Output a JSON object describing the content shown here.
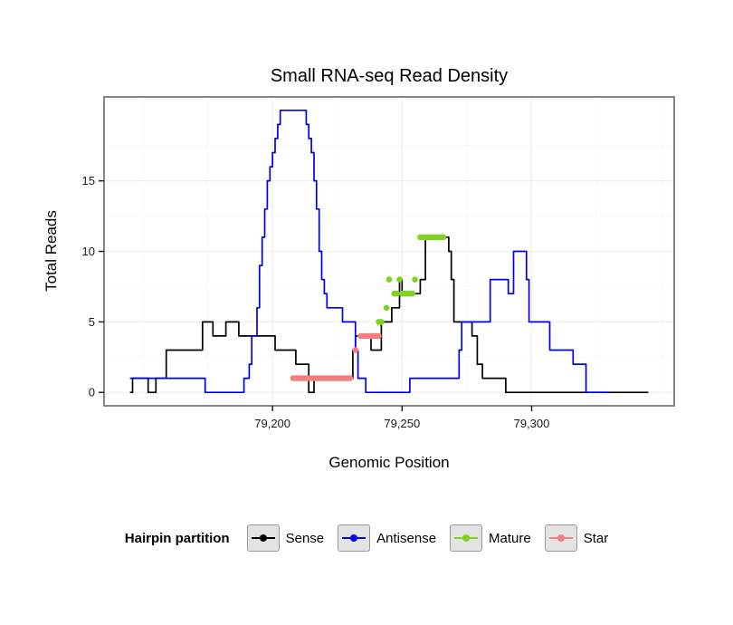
{
  "title": "Small RNA-seq Read Density",
  "axes": {
    "x_label": "Genomic Position",
    "y_label": "Total Reads"
  },
  "legend": {
    "title": "Hairpin partition",
    "items": [
      {
        "label": "Sense",
        "color": "#000000"
      },
      {
        "label": "Antisense",
        "color": "#0000EE"
      },
      {
        "label": "Mature",
        "color": "#7ED321"
      },
      {
        "label": "Star",
        "color": "#F08080"
      }
    ]
  },
  "chart_data": {
    "type": "line",
    "title": "Small RNA-seq Read Density",
    "xlabel": "Genomic Position",
    "ylabel": "Total Reads",
    "xlim": [
      79135,
      79355
    ],
    "ylim": [
      -0.95,
      20.95
    ],
    "grid": true,
    "legend_position": "bottom",
    "panel_bg": "#FFFFFF",
    "grid_major_color": "#EFEFEF",
    "grid_minor_color": "#F7F7F7",
    "x_ticks": [
      {
        "value": 79200,
        "label": "79,200"
      },
      {
        "value": 79250,
        "label": "79,250"
      },
      {
        "value": 79300,
        "label": "79,300"
      }
    ],
    "y_ticks": [
      {
        "value": 0,
        "label": "0"
      },
      {
        "value": 5,
        "label": "5"
      },
      {
        "value": 10,
        "label": "10"
      },
      {
        "value": 15,
        "label": "15"
      }
    ],
    "x_minor": [
      79150,
      79175,
      79225,
      79275,
      79325,
      79350
    ],
    "y_minor": [
      2.5,
      7.5,
      12.5,
      17.5
    ],
    "series": [
      {
        "name": "Sense",
        "color": "#000000",
        "style": "step",
        "points": [
          [
            79145,
            0
          ],
          [
            79146,
            1
          ],
          [
            79151,
            1
          ],
          [
            79152,
            0
          ],
          [
            79154,
            0
          ],
          [
            79155,
            1
          ],
          [
            79158,
            1
          ],
          [
            79159,
            3
          ],
          [
            79172,
            3
          ],
          [
            79173,
            5
          ],
          [
            79176,
            5
          ],
          [
            79177,
            4
          ],
          [
            79181,
            4
          ],
          [
            79182,
            5
          ],
          [
            79186,
            5
          ],
          [
            79187,
            4
          ],
          [
            79200,
            4
          ],
          [
            79201,
            3
          ],
          [
            79208,
            3
          ],
          [
            79209,
            2
          ],
          [
            79213,
            2
          ],
          [
            79214,
            0
          ],
          [
            79216,
            1
          ],
          [
            79230,
            1
          ],
          [
            79231,
            3
          ],
          [
            79232,
            4
          ],
          [
            79237,
            4
          ],
          [
            79238,
            3
          ],
          [
            79241,
            3
          ],
          [
            79242,
            5
          ],
          [
            79245,
            5
          ],
          [
            79246,
            6
          ],
          [
            79248,
            6
          ],
          [
            79249,
            8
          ],
          [
            79250,
            7
          ],
          [
            79256,
            7
          ],
          [
            79257,
            8
          ],
          [
            79258,
            8
          ],
          [
            79259,
            11
          ],
          [
            79267,
            11
          ],
          [
            79268,
            10
          ],
          [
            79269,
            8
          ],
          [
            79270,
            5
          ],
          [
            79276,
            5
          ],
          [
            79277,
            4
          ],
          [
            79279,
            2
          ],
          [
            79281,
            1
          ],
          [
            79289,
            1
          ],
          [
            79290,
            0
          ],
          [
            79345,
            0
          ]
        ]
      },
      {
        "name": "Antisense",
        "color": "#0000EE",
        "style": "step",
        "points": [
          [
            79145,
            1
          ],
          [
            79173,
            1
          ],
          [
            79174,
            0
          ],
          [
            79188,
            0
          ],
          [
            79189,
            1
          ],
          [
            79191,
            2
          ],
          [
            79192,
            4
          ],
          [
            79194,
            6
          ],
          [
            79195,
            9
          ],
          [
            79196,
            11
          ],
          [
            79197,
            13
          ],
          [
            79198,
            15
          ],
          [
            79199,
            16
          ],
          [
            79200,
            17
          ],
          [
            79201,
            18
          ],
          [
            79202,
            19
          ],
          [
            79203,
            20
          ],
          [
            79211,
            20
          ],
          [
            79213,
            19
          ],
          [
            79214,
            18
          ],
          [
            79215,
            17
          ],
          [
            79216,
            15
          ],
          [
            79217,
            13
          ],
          [
            79218,
            10
          ],
          [
            79219,
            8
          ],
          [
            79220,
            7
          ],
          [
            79221,
            6
          ],
          [
            79226,
            6
          ],
          [
            79227,
            5
          ],
          [
            79231,
            5
          ],
          [
            79232,
            3
          ],
          [
            79233,
            1
          ],
          [
            79235,
            1
          ],
          [
            79236,
            0
          ],
          [
            79252,
            0
          ],
          [
            79253,
            1
          ],
          [
            79271,
            1
          ],
          [
            79272,
            3
          ],
          [
            79273,
            5
          ],
          [
            79283,
            5
          ],
          [
            79284,
            8
          ],
          [
            79290,
            8
          ],
          [
            79291,
            7
          ],
          [
            79292,
            7
          ],
          [
            79293,
            10
          ],
          [
            79297,
            10
          ],
          [
            79298,
            8
          ],
          [
            79299,
            5
          ],
          [
            79306,
            5
          ],
          [
            79307,
            3
          ],
          [
            79315,
            3
          ],
          [
            79316,
            2
          ],
          [
            79320,
            2
          ],
          [
            79321,
            0
          ],
          [
            79330,
            0
          ]
        ]
      },
      {
        "name": "Mature",
        "color": "#7ED321",
        "style": "points",
        "points": [
          [
            79241,
            5
          ],
          [
            79242,
            5
          ],
          [
            79244,
            6
          ],
          [
            79245,
            8
          ],
          [
            79247,
            7
          ],
          [
            79248,
            7
          ],
          [
            79249,
            8
          ],
          [
            79250,
            7
          ],
          [
            79251,
            7
          ],
          [
            79252,
            7
          ],
          [
            79253,
            7
          ],
          [
            79254,
            7
          ],
          [
            79255,
            8
          ],
          [
            79257,
            11
          ],
          [
            79258,
            11
          ],
          [
            79259,
            11
          ],
          [
            79260,
            11
          ],
          [
            79261,
            11
          ],
          [
            79262,
            11
          ],
          [
            79263,
            11
          ],
          [
            79264,
            11
          ],
          [
            79265,
            11
          ],
          [
            79266,
            11
          ]
        ]
      },
      {
        "name": "Star",
        "color": "#F08080",
        "style": "points",
        "points": [
          [
            79208,
            1
          ],
          [
            79209,
            1
          ],
          [
            79210,
            1
          ],
          [
            79211,
            1
          ],
          [
            79212,
            1
          ],
          [
            79213,
            1
          ],
          [
            79214,
            1
          ],
          [
            79215,
            1
          ],
          [
            79216,
            1
          ],
          [
            79217,
            1
          ],
          [
            79218,
            1
          ],
          [
            79219,
            1
          ],
          [
            79220,
            1
          ],
          [
            79221,
            1
          ],
          [
            79222,
            1
          ],
          [
            79223,
            1
          ],
          [
            79224,
            1
          ],
          [
            79225,
            1
          ],
          [
            79226,
            1
          ],
          [
            79227,
            1
          ],
          [
            79228,
            1
          ],
          [
            79229,
            1
          ],
          [
            79230,
            1
          ],
          [
            79232,
            3
          ],
          [
            79234,
            4
          ],
          [
            79235,
            4
          ],
          [
            79236,
            4
          ],
          [
            79237,
            4
          ],
          [
            79238,
            4
          ],
          [
            79239,
            4
          ],
          [
            79240,
            4
          ],
          [
            79241,
            4
          ]
        ]
      }
    ]
  }
}
